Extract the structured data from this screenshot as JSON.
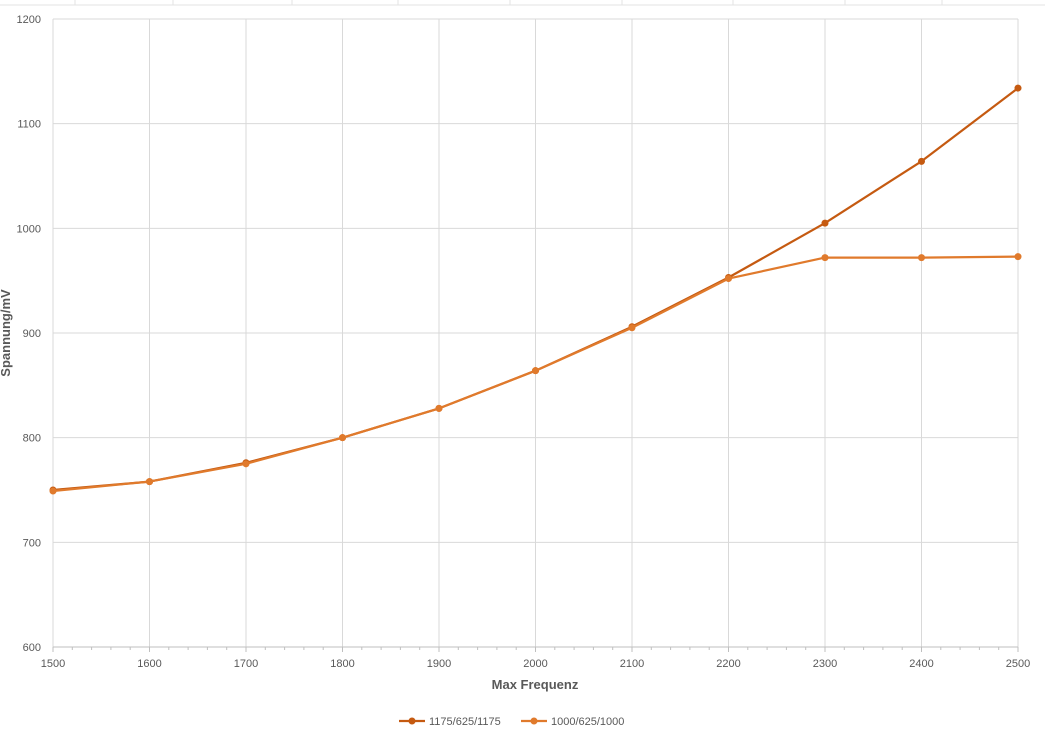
{
  "chart_data": {
    "type": "line",
    "title": "",
    "xlabel": "Max Frequenz",
    "ylabel": "Spannung/mV",
    "xlim": [
      1500,
      2500
    ],
    "ylim": [
      600,
      1200
    ],
    "x_ticks": [
      1500,
      1600,
      1700,
      1800,
      1900,
      2000,
      2100,
      2200,
      2300,
      2400,
      2500
    ],
    "y_ticks": [
      600,
      700,
      800,
      900,
      1000,
      1100,
      1200
    ],
    "grid": true,
    "legend_position": "bottom",
    "series": [
      {
        "name": "1175/625/1175",
        "color": "#c55a11",
        "x": [
          1500,
          1600,
          1700,
          1800,
          1900,
          2000,
          2100,
          2200,
          2300,
          2400,
          2500
        ],
        "values": [
          750,
          758,
          776,
          800,
          828,
          864,
          906,
          953,
          1005,
          1064,
          1134
        ]
      },
      {
        "name": "1000/625/1000",
        "color": "#e07a2c",
        "x": [
          1500,
          1600,
          1700,
          1800,
          1900,
          2000,
          2100,
          2200,
          2300,
          2400,
          2500
        ],
        "values": [
          749,
          758,
          775,
          800,
          828,
          864,
          905,
          952,
          972,
          972,
          973
        ]
      }
    ]
  }
}
